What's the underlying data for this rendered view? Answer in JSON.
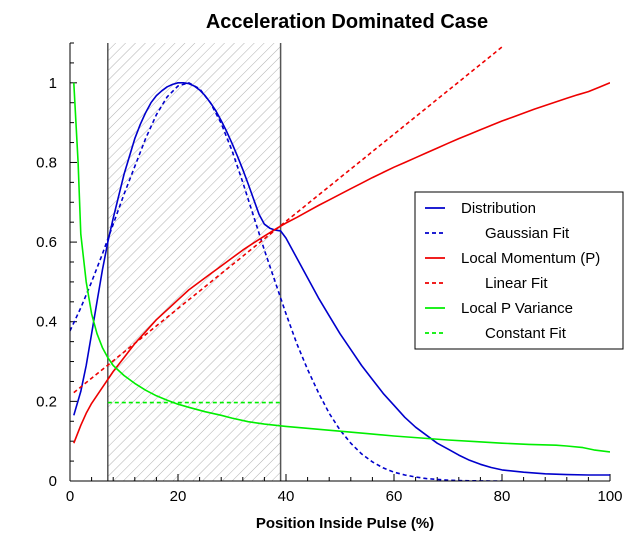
{
  "chart_data": {
    "type": "line",
    "title": "Acceleration Dominated Case",
    "xlabel": "Position Inside Pulse (%)",
    "ylabel": "",
    "xlim": [
      0,
      100
    ],
    "ylim": [
      0,
      1.1
    ],
    "xticks": [
      "0",
      "20",
      "40",
      "60",
      "80",
      "100"
    ],
    "yticks": [
      "0",
      "0.2",
      "0.4",
      "0.6",
      "0.8",
      "1"
    ],
    "legend_position": "right",
    "shaded_region": {
      "x_start": 7,
      "x_end": 39,
      "pattern": "diagonal-hatch"
    },
    "series": [
      {
        "name": "Distribution",
        "color": "#0000cc",
        "dash": "solid",
        "x": [
          0.7,
          2,
          3,
          4,
          5,
          6,
          7,
          8,
          9,
          10,
          11,
          12,
          13,
          14,
          15,
          16,
          17,
          18,
          19,
          20,
          21,
          22,
          23,
          24,
          25,
          26,
          27,
          28,
          29,
          30,
          31,
          32,
          33,
          34,
          35,
          36,
          37,
          38,
          39,
          40,
          42,
          44,
          46,
          48,
          50,
          52,
          54,
          56,
          58,
          60,
          62,
          64,
          66,
          68,
          70,
          72,
          74,
          76,
          78,
          80,
          84,
          88,
          92,
          96,
          100
        ],
        "y": [
          0.165,
          0.225,
          0.29,
          0.37,
          0.45,
          0.53,
          0.6,
          0.66,
          0.715,
          0.77,
          0.815,
          0.86,
          0.895,
          0.925,
          0.95,
          0.968,
          0.98,
          0.99,
          0.996,
          1.0,
          1.0,
          0.998,
          0.992,
          0.982,
          0.968,
          0.95,
          0.93,
          0.905,
          0.878,
          0.848,
          0.816,
          0.782,
          0.746,
          0.708,
          0.67,
          0.645,
          0.635,
          0.63,
          0.628,
          0.61,
          0.56,
          0.51,
          0.46,
          0.415,
          0.37,
          0.33,
          0.29,
          0.255,
          0.22,
          0.19,
          0.16,
          0.135,
          0.115,
          0.095,
          0.08,
          0.065,
          0.052,
          0.042,
          0.034,
          0.028,
          0.022,
          0.018,
          0.016,
          0.015,
          0.015
        ]
      },
      {
        "name": "Gaussian Fit",
        "color": "#0000cc",
        "dash": "dashed",
        "x": [
          0,
          2,
          4,
          6,
          8,
          10,
          12,
          14,
          16,
          18,
          20,
          22,
          24,
          26,
          28,
          30,
          32,
          34,
          36,
          38,
          40,
          42,
          44,
          46,
          48,
          50,
          52,
          54,
          56,
          58,
          60,
          62,
          64,
          66,
          68,
          70,
          72,
          74,
          76,
          78,
          80
        ],
        "y": [
          0.377,
          0.435,
          0.5,
          0.57,
          0.645,
          0.72,
          0.79,
          0.86,
          0.92,
          0.965,
          0.992,
          1.0,
          0.985,
          0.95,
          0.898,
          0.83,
          0.75,
          0.665,
          0.58,
          0.5,
          0.42,
          0.345,
          0.28,
          0.222,
          0.17,
          0.128,
          0.095,
          0.068,
          0.048,
          0.033,
          0.022,
          0.015,
          0.01,
          0.006,
          0.004,
          0.002,
          0.001,
          0.0005,
          0.0003,
          0.0001,
          0.0
        ]
      },
      {
        "name": "Local Momentum (P)",
        "color": "#ee0000",
        "dash": "solid",
        "x": [
          0.7,
          2,
          3,
          4,
          5,
          6,
          7,
          8,
          10,
          12,
          14,
          16,
          18,
          20,
          22,
          24,
          26,
          28,
          30,
          32,
          34,
          36,
          38,
          40,
          42,
          44,
          46,
          48,
          50,
          52,
          54,
          56,
          58,
          60,
          62,
          64,
          66,
          68,
          70,
          72,
          74,
          76,
          78,
          80,
          82,
          84,
          86,
          88,
          90,
          92,
          94,
          96,
          98,
          100
        ],
        "y": [
          0.095,
          0.14,
          0.17,
          0.195,
          0.215,
          0.235,
          0.255,
          0.275,
          0.31,
          0.345,
          0.375,
          0.405,
          0.43,
          0.455,
          0.48,
          0.5,
          0.52,
          0.54,
          0.56,
          0.58,
          0.598,
          0.615,
          0.632,
          0.648,
          0.662,
          0.677,
          0.692,
          0.706,
          0.72,
          0.734,
          0.748,
          0.762,
          0.775,
          0.788,
          0.8,
          0.812,
          0.824,
          0.836,
          0.848,
          0.86,
          0.871,
          0.882,
          0.893,
          0.904,
          0.914,
          0.924,
          0.934,
          0.943,
          0.952,
          0.961,
          0.97,
          0.978,
          0.989,
          1.0
        ]
      },
      {
        "name": "Linear Fit",
        "color": "#ee0000",
        "dash": "dashed",
        "x": [
          0.7,
          80
        ],
        "y": [
          0.222,
          1.09
        ]
      },
      {
        "name": "Local P Variance",
        "color": "#00ee00",
        "dash": "solid",
        "x": [
          0.7,
          1.5,
          2,
          3,
          4,
          5,
          6,
          7,
          8,
          10,
          12,
          14,
          16,
          18,
          20,
          22,
          25,
          28,
          30,
          33,
          36,
          40,
          45,
          50,
          55,
          60,
          65,
          70,
          75,
          80,
          85,
          90,
          92,
          95,
          97,
          100
        ],
        "y": [
          1.0,
          0.8,
          0.62,
          0.5,
          0.42,
          0.37,
          0.335,
          0.31,
          0.29,
          0.265,
          0.245,
          0.228,
          0.214,
          0.203,
          0.193,
          0.185,
          0.174,
          0.165,
          0.158,
          0.149,
          0.143,
          0.137,
          0.131,
          0.125,
          0.119,
          0.113,
          0.108,
          0.103,
          0.099,
          0.095,
          0.092,
          0.09,
          0.088,
          0.084,
          0.078,
          0.073
        ]
      },
      {
        "name": "Constant Fit",
        "color": "#00ee00",
        "dash": "dashed",
        "x": [
          7,
          39
        ],
        "y": [
          0.197,
          0.197
        ]
      }
    ]
  }
}
